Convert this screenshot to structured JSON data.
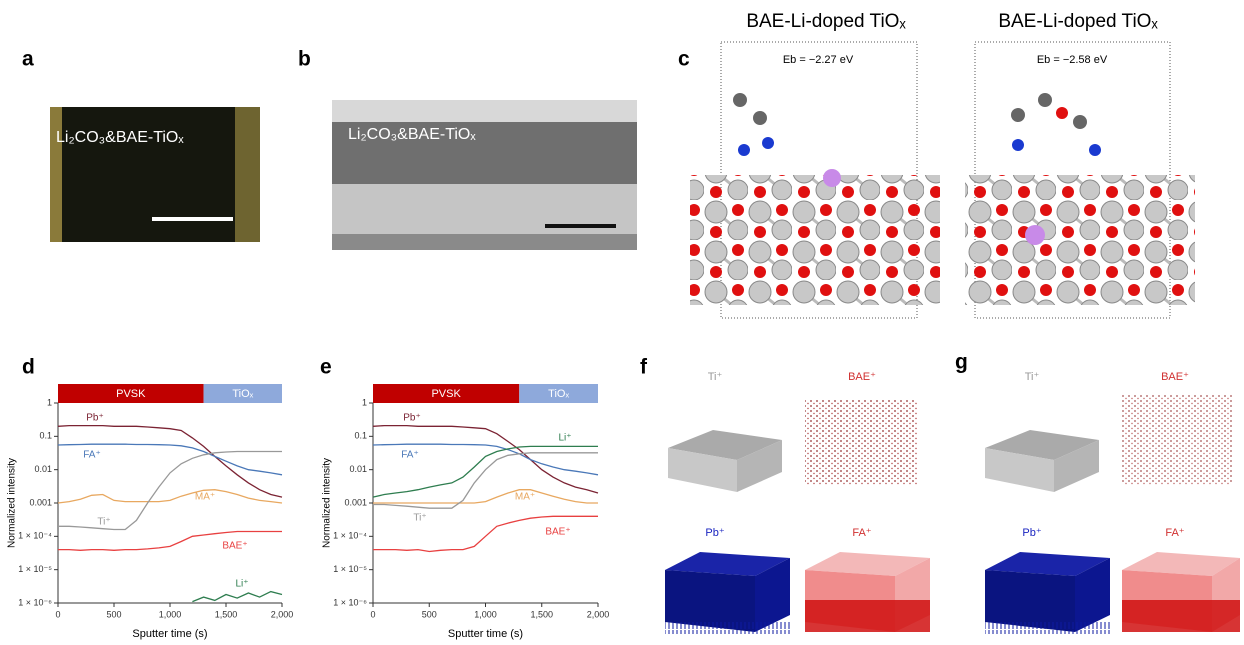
{
  "panels": {
    "a": {
      "label": "a",
      "overlay": "Li₂CO₃&BAE-TiOₓ"
    },
    "b": {
      "label": "b",
      "overlay": "Li₂CO₃&BAE-TiOₓ"
    },
    "c": {
      "label": "c",
      "structures": [
        {
          "title": "BAE-Li-doped TiOₓ",
          "energy": "Eb = −2.27 eV"
        },
        {
          "title": "BAE-Li-doped TiOₓ",
          "energy": "Eb = −2.58 eV"
        }
      ]
    },
    "f": {
      "label": "f",
      "maps": [
        "Ti⁺",
        "BAE⁺",
        "Pb⁺",
        "FA⁺"
      ]
    },
    "g": {
      "label": "g",
      "maps": [
        "Ti⁺",
        "BAE⁺",
        "Pb⁺",
        "FA⁺"
      ]
    }
  },
  "chart_data": [
    {
      "type": "line",
      "panel_label": "d",
      "yscale": "log",
      "x_label": "Sputter time (s)",
      "y_label": "Normalized intensity",
      "phases": [
        {
          "label": "PVSK",
          "start": 0,
          "end": 1300,
          "color": "#c00000"
        },
        {
          "label": "TiOₓ",
          "start": 1300,
          "end": 2000,
          "color": "#8ea9db"
        }
      ],
      "x": [
        0,
        100,
        200,
        300,
        400,
        500,
        600,
        700,
        800,
        900,
        1000,
        1100,
        1200,
        1300,
        1400,
        1500,
        1600,
        1700,
        1800,
        1900,
        2000
      ],
      "xlim": [
        0,
        2000
      ],
      "xticks": [
        0,
        500,
        {
          "value": 1000,
          "label": "1,000"
        },
        {
          "value": 1500,
          "label": "1,500"
        },
        {
          "value": 2000,
          "label": "2,000"
        }
      ],
      "ylim": [
        1e-06,
        1
      ],
      "yticks": [
        {
          "value": 1e-06,
          "label": "1 × 10⁻⁶"
        },
        {
          "value": 1e-05,
          "label": "1 × 10⁻⁵"
        },
        {
          "value": 0.0001,
          "label": "1 × 10⁻⁴"
        },
        0.001,
        0.01,
        0.1,
        1
      ],
      "series": [
        {
          "name": "Pb⁺",
          "color": "#7b2333",
          "values": [
            0.2,
            0.21,
            0.21,
            0.21,
            0.21,
            0.2,
            0.2,
            0.2,
            0.19,
            0.18,
            0.17,
            0.15,
            0.09,
            0.05,
            0.025,
            0.013,
            0.007,
            0.004,
            0.0025,
            0.0018,
            0.0015
          ]
        },
        {
          "name": "FA⁺",
          "color": "#4a78b8",
          "values": [
            0.055,
            0.056,
            0.057,
            0.058,
            0.058,
            0.058,
            0.058,
            0.057,
            0.057,
            0.056,
            0.055,
            0.052,
            0.045,
            0.035,
            0.025,
            0.018,
            0.013,
            0.01,
            0.009,
            0.008,
            0.007
          ]
        },
        {
          "name": "MA⁺",
          "color": "#e8a860",
          "values": [
            0.001,
            0.0011,
            0.0013,
            0.0017,
            0.0018,
            0.0012,
            0.0011,
            0.0011,
            0.0011,
            0.0011,
            0.0012,
            0.0016,
            0.002,
            0.0024,
            0.0025,
            0.0022,
            0.0018,
            0.0014,
            0.0012,
            0.0011,
            0.001
          ]
        },
        {
          "name": "Ti⁺",
          "color": "#999999",
          "values": [
            0.0002,
            0.0002,
            0.00019,
            0.00018,
            0.00017,
            0.00016,
            0.00016,
            0.0003,
            0.001,
            0.003,
            0.008,
            0.015,
            0.022,
            0.028,
            0.032,
            0.034,
            0.035,
            0.035,
            0.035,
            0.035,
            0.035
          ]
        },
        {
          "name": "BAE⁺",
          "color": "#e84040",
          "values": [
            4e-05,
            4e-05,
            3.8e-05,
            4e-05,
            4e-05,
            3.8e-05,
            4e-05,
            4e-05,
            4.2e-05,
            4.5e-05,
            5e-05,
            7e-05,
            0.0001,
            0.00011,
            0.00012,
            0.00013,
            0.00014,
            0.00014,
            0.00014,
            0.00014,
            0.00014
          ]
        },
        {
          "name": "Li⁺",
          "color": "#2e7d4f",
          "values": [
            null,
            null,
            null,
            null,
            null,
            null,
            null,
            null,
            null,
            null,
            null,
            null,
            1.1e-06,
            1.5e-06,
            1.2e-06,
            1.8e-06,
            1.4e-06,
            2e-06,
            1.5e-06,
            2.2e-06,
            1.8e-06
          ]
        }
      ]
    },
    {
      "type": "line",
      "panel_label": "e",
      "yscale": "log",
      "x_label": "Sputter time (s)",
      "y_label": "Normalized intensity",
      "phases": [
        {
          "label": "PVSK",
          "start": 0,
          "end": 1300,
          "color": "#c00000"
        },
        {
          "label": "TiOₓ",
          "start": 1300,
          "end": 2000,
          "color": "#8ea9db"
        }
      ],
      "x": [
        0,
        100,
        200,
        300,
        400,
        500,
        600,
        700,
        800,
        900,
        1000,
        1100,
        1200,
        1300,
        1400,
        1500,
        1600,
        1700,
        1800,
        1900,
        2000
      ],
      "xlim": [
        0,
        2000
      ],
      "xticks": [
        0,
        500,
        {
          "value": 1000,
          "label": "1,000"
        },
        {
          "value": 1500,
          "label": "1,500"
        },
        {
          "value": 2000,
          "label": "2,000"
        }
      ],
      "ylim": [
        1e-06,
        1
      ],
      "yticks": [
        {
          "value": 1e-06,
          "label": "1 × 10⁻⁶"
        },
        {
          "value": 1e-05,
          "label": "1 × 10⁻⁵"
        },
        {
          "value": 0.0001,
          "label": "1 × 10⁻⁴"
        },
        0.001,
        0.01,
        0.1,
        1
      ],
      "series": [
        {
          "name": "Pb⁺",
          "color": "#7b2333",
          "values": [
            0.2,
            0.21,
            0.21,
            0.21,
            0.2,
            0.2,
            0.2,
            0.2,
            0.19,
            0.18,
            0.17,
            0.12,
            0.07,
            0.04,
            0.02,
            0.01,
            0.006,
            0.004,
            0.003,
            0.0025,
            0.002
          ]
        },
        {
          "name": "FA⁺",
          "color": "#4a78b8",
          "values": [
            0.055,
            0.056,
            0.057,
            0.058,
            0.058,
            0.058,
            0.058,
            0.057,
            0.057,
            0.056,
            0.055,
            0.05,
            0.04,
            0.03,
            0.02,
            0.015,
            0.012,
            0.01,
            0.009,
            0.008,
            0.007
          ]
        },
        {
          "name": "MA⁺",
          "color": "#e8a860",
          "values": [
            0.001,
            0.001,
            0.001,
            0.001,
            0.001,
            0.001,
            0.001,
            0.001,
            0.001,
            0.001,
            0.0011,
            0.0015,
            0.002,
            0.0025,
            0.0025,
            0.002,
            0.0016,
            0.0013,
            0.0011,
            0.001,
            0.001
          ]
        },
        {
          "name": "Ti⁺",
          "color": "#999999",
          "values": [
            0.0009,
            0.0009,
            0.00085,
            0.0008,
            0.00075,
            0.0007,
            0.0007,
            0.0007,
            0.0012,
            0.004,
            0.01,
            0.02,
            0.027,
            0.03,
            0.032,
            0.032,
            0.032,
            0.032,
            0.032,
            0.032,
            0.032
          ]
        },
        {
          "name": "BAE⁺",
          "color": "#e84040",
          "values": [
            4e-05,
            4e-05,
            4e-05,
            3.8e-05,
            4e-05,
            3.5e-05,
            3.8e-05,
            4e-05,
            4e-05,
            5e-05,
            0.0001,
            0.0002,
            0.00025,
            0.0003,
            0.00035,
            0.00038,
            0.0004,
            0.0004,
            0.0004,
            0.0004,
            0.0004
          ]
        },
        {
          "name": "Li⁺",
          "color": "#2e7d4f",
          "values": [
            0.0015,
            0.0018,
            0.002,
            0.0022,
            0.0025,
            0.003,
            0.0035,
            0.004,
            0.006,
            0.012,
            0.025,
            0.035,
            0.042,
            0.048,
            0.05,
            0.05,
            0.05,
            0.05,
            0.05,
            0.05,
            0.05
          ]
        }
      ]
    }
  ]
}
